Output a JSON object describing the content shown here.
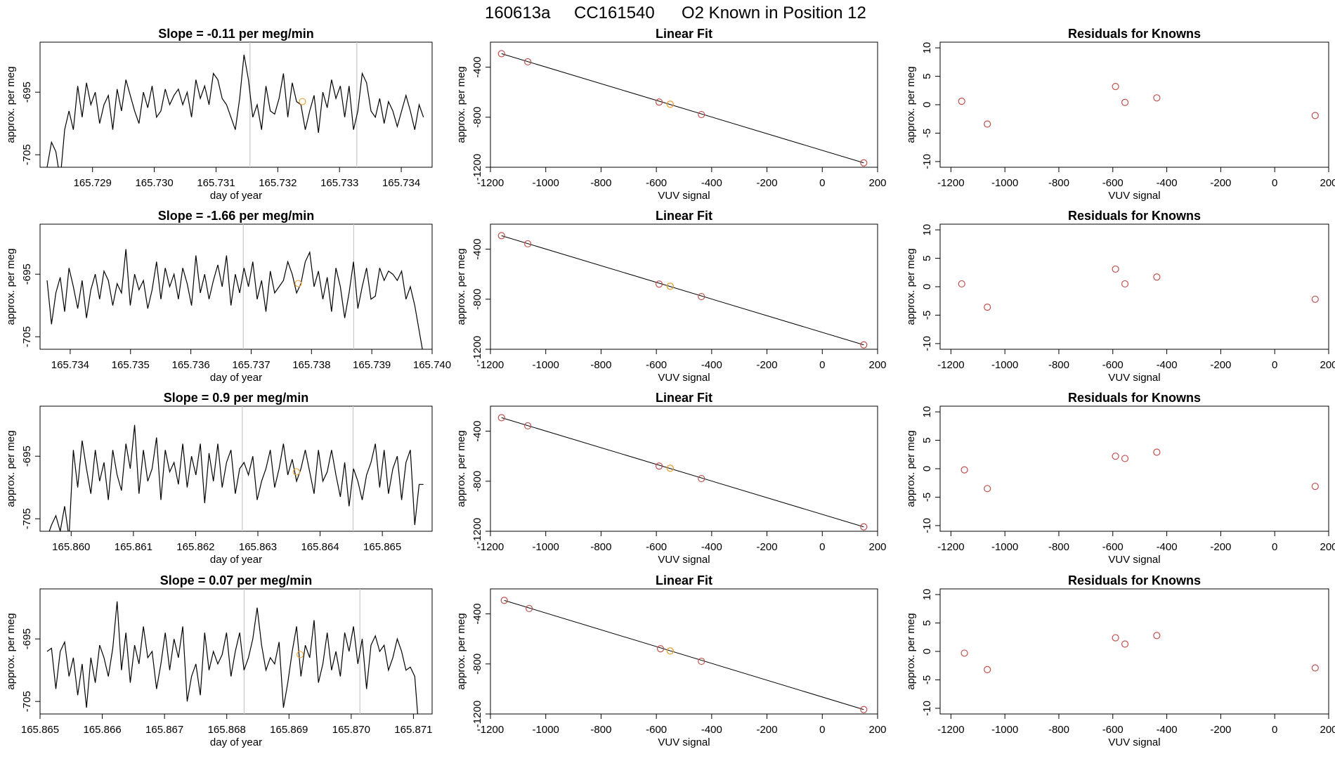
{
  "figure": {
    "title_parts": [
      "160613a",
      "CC161540",
      "O2 Known in Position  12"
    ],
    "colors": {
      "trace": "#000000",
      "window_line": "#c8c8c8",
      "highlight_point": "#e8a33c",
      "known_point": "#c0504d",
      "fit_line": "#000000"
    }
  },
  "chart_data": [
    {
      "row": 1,
      "timeseries": {
        "type": "line",
        "title_prefix": "Slope = ",
        "slope": "-0.11",
        "title_suffix": " per meg/min",
        "xlabel": "day of year",
        "ylabel": "approx. per meg",
        "xlim": [
          165.72815,
          165.7345
        ],
        "ylim": [
          -707,
          -687
        ],
        "xticks": [
          "165.729",
          "165.730",
          "165.731",
          "165.732",
          "165.733",
          "165.734"
        ],
        "yticks": [
          "-695",
          "-705"
        ],
        "window_lines": [
          165.73155,
          165.73328
        ],
        "highlight_point": [
          165.7324,
          -696.5
        ],
        "trace_y": [
          -707,
          -703,
          -704.5,
          -709,
          -701,
          -698,
          -701,
          -694,
          -699,
          -693.5,
          -697,
          -695,
          -700,
          -697,
          -695.5,
          -701,
          -694.5,
          -698,
          -693,
          -695.5,
          -698,
          -700,
          -695,
          -697.5,
          -694,
          -699,
          -698,
          -694.5,
          -697,
          -695.5,
          -694.5,
          -697,
          -695,
          -699,
          -693,
          -696,
          -694,
          -697,
          -692,
          -693,
          -696,
          -697,
          -699,
          -701,
          -696,
          -689,
          -693,
          -699,
          -697,
          -701,
          -694,
          -698,
          -698.5,
          -696,
          -692,
          -699,
          -693.5,
          -696.5,
          -697,
          -701,
          -698,
          -695.5,
          -701.5,
          -695,
          -697.5,
          -693,
          -696,
          -694,
          -699,
          -694,
          -701,
          -698,
          -692,
          -693.5,
          -698,
          -699,
          -696,
          -700,
          -696.5,
          -698,
          -700.5,
          -698,
          -695.5,
          -698,
          -701,
          -697,
          -699
        ]
      },
      "fit": {
        "type": "scatter",
        "title": "Linear Fit",
        "xlabel": "VUV signal",
        "ylabel": "approx. per meg",
        "xlim": [
          -1200,
          200
        ],
        "ylim": [
          -1200,
          -200
        ],
        "xticks": [
          "-1200",
          "-1000",
          "-800",
          "-600",
          "-400",
          "-200",
          "0",
          "200"
        ],
        "yticks": [
          "-400",
          "-800",
          "-1200"
        ],
        "knowns": [
          [
            -1160,
            -292
          ],
          [
            -1065,
            -357
          ],
          [
            -590,
            -679
          ],
          [
            -437,
            -779
          ],
          [
            150,
            -1165
          ]
        ],
        "highlight_point": [
          -550,
          -696
        ],
        "fit_line": [
          [
            -1160,
            -292
          ],
          [
            150,
            -1165
          ]
        ]
      },
      "residuals": {
        "type": "scatter",
        "title": "Residuals for Knowns",
        "xlabel": "VUV signal",
        "ylabel": "approx. per meg",
        "xlim": [
          -1240,
          200
        ],
        "ylim": [
          -11,
          11
        ],
        "xticks": [
          "-1200",
          "-1000",
          "-800",
          "-600",
          "-400",
          "-200",
          "0",
          "200"
        ],
        "yticks": [
          "10",
          "5",
          "0",
          "-5",
          "-10"
        ],
        "points": [
          [
            -1160,
            0.6
          ],
          [
            -1065,
            -3.4
          ],
          [
            -590,
            3.2
          ],
          [
            -555,
            0.4
          ],
          [
            -437,
            1.2
          ],
          [
            150,
            -1.9
          ]
        ]
      }
    },
    {
      "row": 2,
      "timeseries": {
        "type": "line",
        "title_prefix": "Slope = ",
        "slope": "-1.66",
        "title_suffix": " per meg/min",
        "xlabel": "day of year",
        "ylabel": "approx. per meg",
        "xlim": [
          165.7335,
          165.74
        ],
        "ylim": [
          -707,
          -687
        ],
        "xticks": [
          "165.734",
          "165.735",
          "165.736",
          "165.737",
          "165.738",
          "165.739",
          "165.740"
        ],
        "yticks": [
          "-695",
          "-705"
        ],
        "window_lines": [
          165.73687,
          165.7387
        ],
        "highlight_point": [
          165.73778,
          -696.5
        ],
        "trace_y": [
          -696,
          -703,
          -698,
          -695.5,
          -701,
          -694,
          -697,
          -700.5,
          -696,
          -702,
          -697.5,
          -695,
          -699,
          -694.5,
          -696,
          -700,
          -696.5,
          -698,
          -691,
          -700,
          -695,
          -697.5,
          -696,
          -700.5,
          -697.5,
          -693,
          -699,
          -694,
          -697,
          -695,
          -699,
          -694,
          -696.5,
          -700,
          -692,
          -698,
          -695,
          -699,
          -696,
          -693.5,
          -697,
          -692,
          -700,
          -695,
          -698,
          -694,
          -697,
          -693,
          -699,
          -696,
          -701,
          -694.5,
          -698,
          -697,
          -696,
          -693,
          -695,
          -698,
          -696.5,
          -693,
          -691.5,
          -697,
          -694.5,
          -699,
          -695.5,
          -701,
          -694,
          -697,
          -702,
          -698,
          -693,
          -700.5,
          -697,
          -694,
          -699,
          -698.5,
          -694,
          -696,
          -694.5,
          -695,
          -696,
          -694.5,
          -699,
          -697,
          -700,
          -704,
          -708
        ]
      },
      "fit": {
        "type": "scatter",
        "title": "Linear Fit",
        "xlabel": "VUV signal",
        "ylabel": "approx. per meg",
        "xlim": [
          -1200,
          200
        ],
        "ylim": [
          -1200,
          -200
        ],
        "xticks": [
          "-1200",
          "-1000",
          "-800",
          "-600",
          "-400",
          "-200",
          "0",
          "200"
        ],
        "yticks": [
          "-400",
          "-800",
          "-1200"
        ],
        "knowns": [
          [
            -1160,
            -292
          ],
          [
            -1065,
            -357
          ],
          [
            -590,
            -679
          ],
          [
            -437,
            -779
          ],
          [
            150,
            -1165
          ]
        ],
        "highlight_point": [
          -550,
          -696
        ],
        "fit_line": [
          [
            -1160,
            -292
          ],
          [
            150,
            -1165
          ]
        ]
      },
      "residuals": {
        "type": "scatter",
        "title": "Residuals for Knowns",
        "xlabel": "VUV signal",
        "ylabel": "approx. per meg",
        "xlim": [
          -1240,
          200
        ],
        "ylim": [
          -11,
          11
        ],
        "xticks": [
          "-1200",
          "-1000",
          "-800",
          "-600",
          "-400",
          "-200",
          "0",
          "200"
        ],
        "yticks": [
          "10",
          "5",
          "0",
          "-5",
          "-10"
        ],
        "points": [
          [
            -1160,
            0.5
          ],
          [
            -1065,
            -3.6
          ],
          [
            -590,
            3.1
          ],
          [
            -555,
            0.5
          ],
          [
            -437,
            1.7
          ],
          [
            150,
            -2.2
          ]
        ]
      }
    },
    {
      "row": 3,
      "timeseries": {
        "type": "line",
        "title_prefix": "Slope = ",
        "slope": "0.9",
        "title_suffix": " per meg/min",
        "xlabel": "day of year",
        "ylabel": "approx. per meg",
        "xlim": [
          165.8595,
          165.8658
        ],
        "ylim": [
          -707,
          -687
        ],
        "xticks": [
          "165.860",
          "165.861",
          "165.862",
          "165.863",
          "165.864",
          "165.865"
        ],
        "yticks": [
          "-695",
          "-705"
        ],
        "window_lines": [
          165.86275,
          165.86453
        ],
        "highlight_point": [
          165.86362,
          -697.5
        ],
        "trace_y": [
          -708,
          -706,
          -704.5,
          -707,
          -703,
          -708,
          -694,
          -700,
          -692.5,
          -697,
          -701,
          -694,
          -699,
          -696,
          -702,
          -694,
          -698,
          -700.5,
          -693,
          -697,
          -690,
          -701,
          -694,
          -699,
          -697,
          -692,
          -702,
          -694,
          -697.5,
          -696,
          -699.5,
          -693,
          -700,
          -695,
          -698,
          -693,
          -702.5,
          -694.5,
          -699,
          -693,
          -700,
          -696,
          -694,
          -701,
          -697,
          -696,
          -698,
          -695,
          -702,
          -699,
          -697,
          -694,
          -700,
          -697,
          -693,
          -698,
          -695.5,
          -699,
          -697,
          -694,
          -697.5,
          -701,
          -694,
          -699,
          -697.5,
          -694,
          -698,
          -701.5,
          -696,
          -703,
          -697,
          -699,
          -702,
          -698,
          -696,
          -693,
          -700,
          -694,
          -701,
          -697,
          -695,
          -702,
          -696,
          -694,
          -706,
          -699.5,
          -699.5
        ]
      },
      "fit": {
        "type": "scatter",
        "title": "Linear Fit",
        "xlabel": "VUV signal",
        "ylabel": "approx. per meg",
        "xlim": [
          -1200,
          200
        ],
        "ylim": [
          -1200,
          -200
        ],
        "xticks": [
          "-1200",
          "-1000",
          "-800",
          "-600",
          "-400",
          "-200",
          "0",
          "200"
        ],
        "yticks": [
          "-400",
          "-800",
          "-1200"
        ],
        "knowns": [
          [
            -1160,
            -292
          ],
          [
            -1065,
            -357
          ],
          [
            -590,
            -679
          ],
          [
            -437,
            -779
          ],
          [
            150,
            -1165
          ]
        ],
        "highlight_point": [
          -550,
          -696
        ],
        "fit_line": [
          [
            -1160,
            -292
          ],
          [
            150,
            -1165
          ]
        ]
      },
      "residuals": {
        "type": "scatter",
        "title": "Residuals for Knowns",
        "xlabel": "VUV signal",
        "ylabel": "approx. per meg",
        "xlim": [
          -1240,
          200
        ],
        "ylim": [
          -11,
          11
        ],
        "xticks": [
          "-1200",
          "-1000",
          "-800",
          "-600",
          "-400",
          "-200",
          "0",
          "200"
        ],
        "yticks": [
          "10",
          "5",
          "0",
          "-5",
          "-10"
        ],
        "points": [
          [
            -1150,
            -0.2
          ],
          [
            -1065,
            -3.5
          ],
          [
            -590,
            2.2
          ],
          [
            -555,
            1.8
          ],
          [
            -437,
            2.9
          ],
          [
            150,
            -3.1
          ]
        ]
      }
    },
    {
      "row": 4,
      "timeseries": {
        "type": "line",
        "title_prefix": "Slope = ",
        "slope": "0.07",
        "title_suffix": " per meg/min",
        "xlabel": "day of year",
        "ylabel": "approx. per meg",
        "xlim": [
          165.865,
          165.8713
        ],
        "ylim": [
          -707,
          -687
        ],
        "xticks": [
          "165.865",
          "165.866",
          "165.867",
          "165.868",
          "165.869",
          "165.870",
          "165.871"
        ],
        "yticks": [
          "-695",
          "-705"
        ],
        "window_lines": [
          165.86828,
          165.87014
        ],
        "highlight_point": [
          165.86918,
          -697.5
        ],
        "trace_y": [
          -697,
          -696.5,
          -703,
          -697,
          -695.5,
          -701,
          -698,
          -704,
          -699,
          -706,
          -698,
          -702,
          -696,
          -698,
          -701,
          -696.5,
          -689,
          -700,
          -694,
          -702,
          -696,
          -699,
          -693,
          -698,
          -697,
          -703,
          -699,
          -694,
          -700,
          -695,
          -698,
          -693,
          -705,
          -701,
          -699,
          -704,
          -694,
          -700,
          -697,
          -699,
          -697.5,
          -694,
          -701,
          -697,
          -694,
          -700,
          -698,
          -695,
          -690,
          -696,
          -700,
          -698,
          -699,
          -695.5,
          -706,
          -702,
          -697,
          -693,
          -701,
          -696,
          -698,
          -692,
          -702,
          -699,
          -694,
          -700,
          -697,
          -701,
          -694,
          -697,
          -693,
          -699,
          -695,
          -703,
          -696,
          -694.5,
          -697,
          -696,
          -700,
          -698,
          -695,
          -697,
          -700,
          -699.5,
          -701,
          -710,
          -708
        ]
      },
      "fit": {
        "type": "scatter",
        "title": "Linear Fit",
        "xlabel": "VUV signal",
        "ylabel": "approx. per meg",
        "xlim": [
          -1200,
          200
        ],
        "ylim": [
          -1200,
          -200
        ],
        "xticks": [
          "-1200",
          "-1000",
          "-800",
          "-600",
          "-400",
          "-200",
          "0",
          "200"
        ],
        "yticks": [
          "-400",
          "-800",
          "-1200"
        ],
        "knowns": [
          [
            -1150,
            -292
          ],
          [
            -1060,
            -357
          ],
          [
            -585,
            -679
          ],
          [
            -437,
            -779
          ],
          [
            150,
            -1165
          ]
        ],
        "highlight_point": [
          -550,
          -696
        ],
        "fit_line": [
          [
            -1150,
            -292
          ],
          [
            150,
            -1165
          ]
        ]
      },
      "residuals": {
        "type": "scatter",
        "title": "Residuals for Knowns",
        "xlabel": "VUV signal",
        "ylabel": "approx. per meg",
        "xlim": [
          -1240,
          200
        ],
        "ylim": [
          -11,
          11
        ],
        "xticks": [
          "-1200",
          "-1000",
          "-800",
          "-600",
          "-400",
          "-200",
          "0",
          "200"
        ],
        "yticks": [
          "10",
          "5",
          "0",
          "-5",
          "-10"
        ],
        "points": [
          [
            -1150,
            -0.3
          ],
          [
            -1065,
            -3.2
          ],
          [
            -590,
            2.4
          ],
          [
            -555,
            1.3
          ],
          [
            -437,
            2.8
          ],
          [
            150,
            -2.9
          ]
        ]
      }
    }
  ]
}
